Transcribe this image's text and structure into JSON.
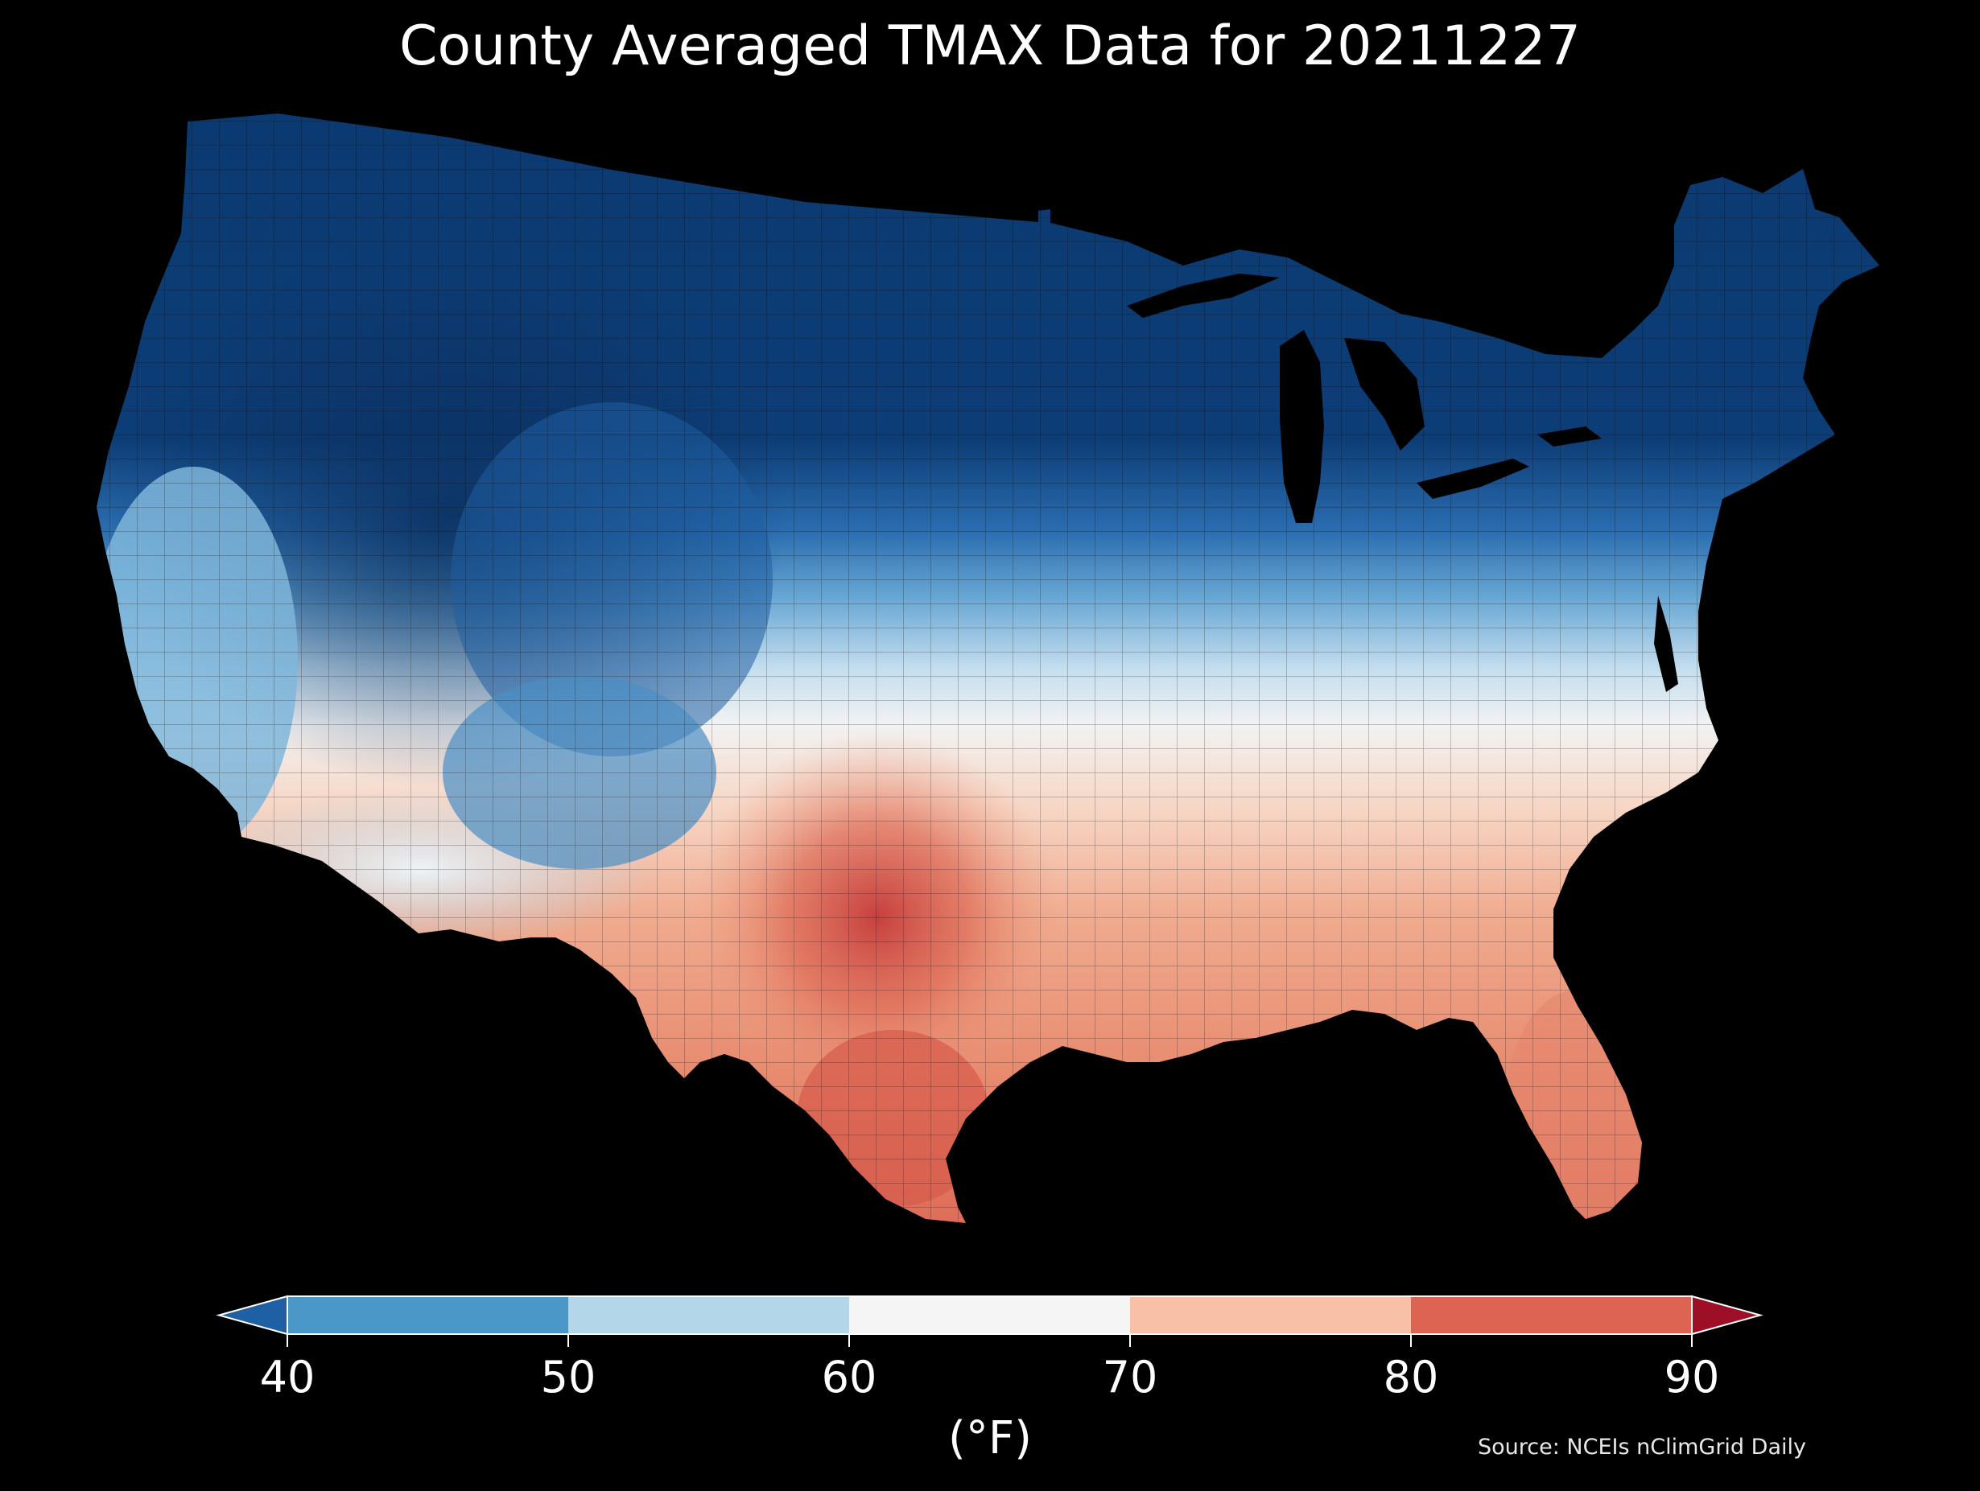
{
  "title": "County Averaged TMAX Data for 20211227",
  "colorbar": {
    "label": "(°F)",
    "ticks": [
      "40",
      "50",
      "60",
      "70",
      "80",
      "90"
    ],
    "bins": [
      {
        "range": "<40",
        "color": "#1f5fa3"
      },
      {
        "range": "40-50",
        "color": "#4a97c8"
      },
      {
        "range": "50-60",
        "color": "#b4d6e9"
      },
      {
        "range": "60-70",
        "color": "#f5f5f5"
      },
      {
        "range": "70-80",
        "color": "#f8c0a6"
      },
      {
        "range": "80-90",
        "color": "#dd6453"
      },
      {
        "range": ">90",
        "color": "#9c0f27"
      }
    ]
  },
  "source": "Source: NCEIs nClimGrid Daily",
  "map_colors": {
    "background": "#000000",
    "northern_tier": "#0b3a72",
    "northwest": "#0e3f78",
    "mid_blue": "#2b6fae",
    "light_blue": "#7fb6da",
    "pale_blue": "#d3e6f2",
    "near_white": "#f2f2f2",
    "light_salmon": "#f6c8b2",
    "salmon": "#eea082",
    "warm_red": "#dd6a56",
    "hot_red": "#c43a3a"
  }
}
